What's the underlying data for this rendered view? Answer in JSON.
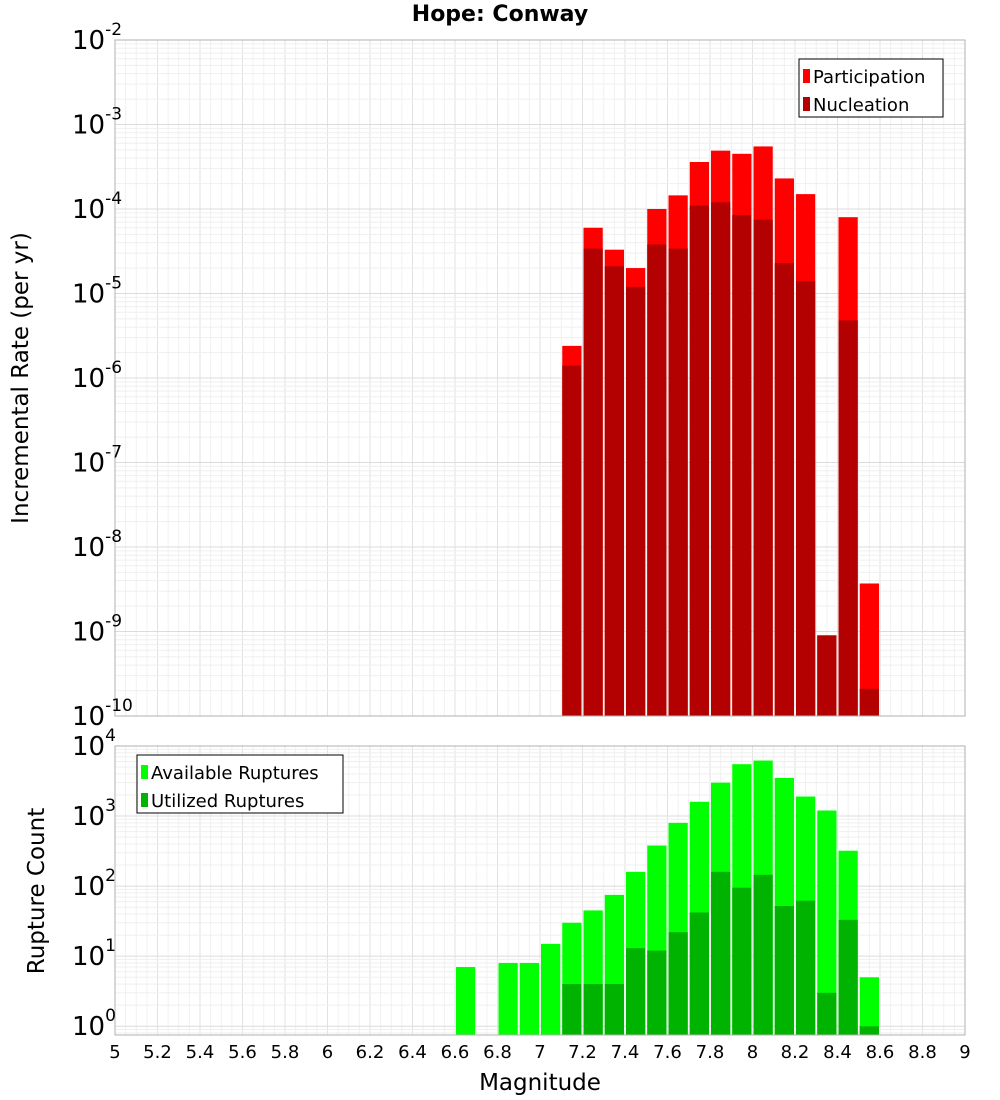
{
  "title": "Hope: Conway",
  "colors": {
    "participation": "#ff0000",
    "nucleation": "#b30000",
    "available": "#00ff00",
    "utilized": "#00b300",
    "grid": "#e5e5e5",
    "frame": "#b0b0b0"
  },
  "chart_data": [
    {
      "type": "bar",
      "title": "Hope: Conway",
      "xlabel": "Magnitude",
      "ylabel": "Incremental Rate (per yr)",
      "yscale": "log",
      "xlim": [
        5,
        9
      ],
      "ylim": [
        1e-10,
        0.01
      ],
      "ytick_exponents": [
        -10,
        -9,
        -8,
        -7,
        -6,
        -5,
        -4,
        -3,
        -2
      ],
      "legend": {
        "position": "top-right",
        "entries": [
          "Participation",
          "Nucleation"
        ]
      },
      "grid": true,
      "x": [
        7.15,
        7.25,
        7.35,
        7.45,
        7.55,
        7.65,
        7.75,
        7.85,
        7.95,
        8.05,
        8.15,
        8.25,
        8.35,
        8.45,
        8.55
      ],
      "series": [
        {
          "name": "Participation",
          "values": [
            2.4e-06,
            6e-05,
            3.3e-05,
            2e-05,
            0.0001,
            0.000145,
            0.00036,
            0.00049,
            0.00045,
            0.00055,
            0.00023,
            0.00015,
            9e-10,
            8e-05,
            3.7e-09
          ]
        },
        {
          "name": "Nucleation",
          "values": [
            1.4e-06,
            3.4e-05,
            2.1e-05,
            1.2e-05,
            3.8e-05,
            3.4e-05,
            0.00011,
            0.00012,
            8.5e-05,
            7.5e-05,
            2.3e-05,
            1.4e-05,
            9e-10,
            4.8e-06,
            2.1e-10
          ]
        }
      ]
    },
    {
      "type": "bar",
      "xlabel": "Magnitude",
      "ylabel": "Rupture Count",
      "yscale": "log",
      "xlim": [
        5,
        9
      ],
      "ylim": [
        0.75,
        10000
      ],
      "xticks": [
        "5",
        "5.2",
        "5.4",
        "5.6",
        "5.8",
        "6",
        "6.2",
        "6.4",
        "6.6",
        "6.8",
        "7",
        "7.2",
        "7.4",
        "7.6",
        "7.8",
        "8",
        "8.2",
        "8.4",
        "8.6",
        "8.8",
        "9"
      ],
      "ytick_exponents": [
        0,
        1,
        2,
        3,
        4
      ],
      "legend": {
        "position": "top-left",
        "entries": [
          "Available Ruptures",
          "Utilized Ruptures"
        ]
      },
      "grid": true,
      "x": [
        6.65,
        6.85,
        6.95,
        7.05,
        7.15,
        7.25,
        7.35,
        7.45,
        7.55,
        7.65,
        7.75,
        7.85,
        7.95,
        8.05,
        8.15,
        8.25,
        8.35,
        8.45,
        8.55
      ],
      "series": [
        {
          "name": "Available Ruptures",
          "values": [
            7,
            8,
            8,
            15,
            30,
            45,
            75,
            160,
            380,
            800,
            1600,
            3000,
            5500,
            6200,
            3500,
            1900,
            1200,
            320,
            5
          ]
        },
        {
          "name": "Utilized Ruptures",
          "values": [
            0,
            0,
            0,
            0,
            4,
            4,
            4,
            13,
            12,
            22,
            42,
            160,
            95,
            145,
            52,
            62,
            3,
            33,
            1
          ]
        }
      ]
    }
  ]
}
